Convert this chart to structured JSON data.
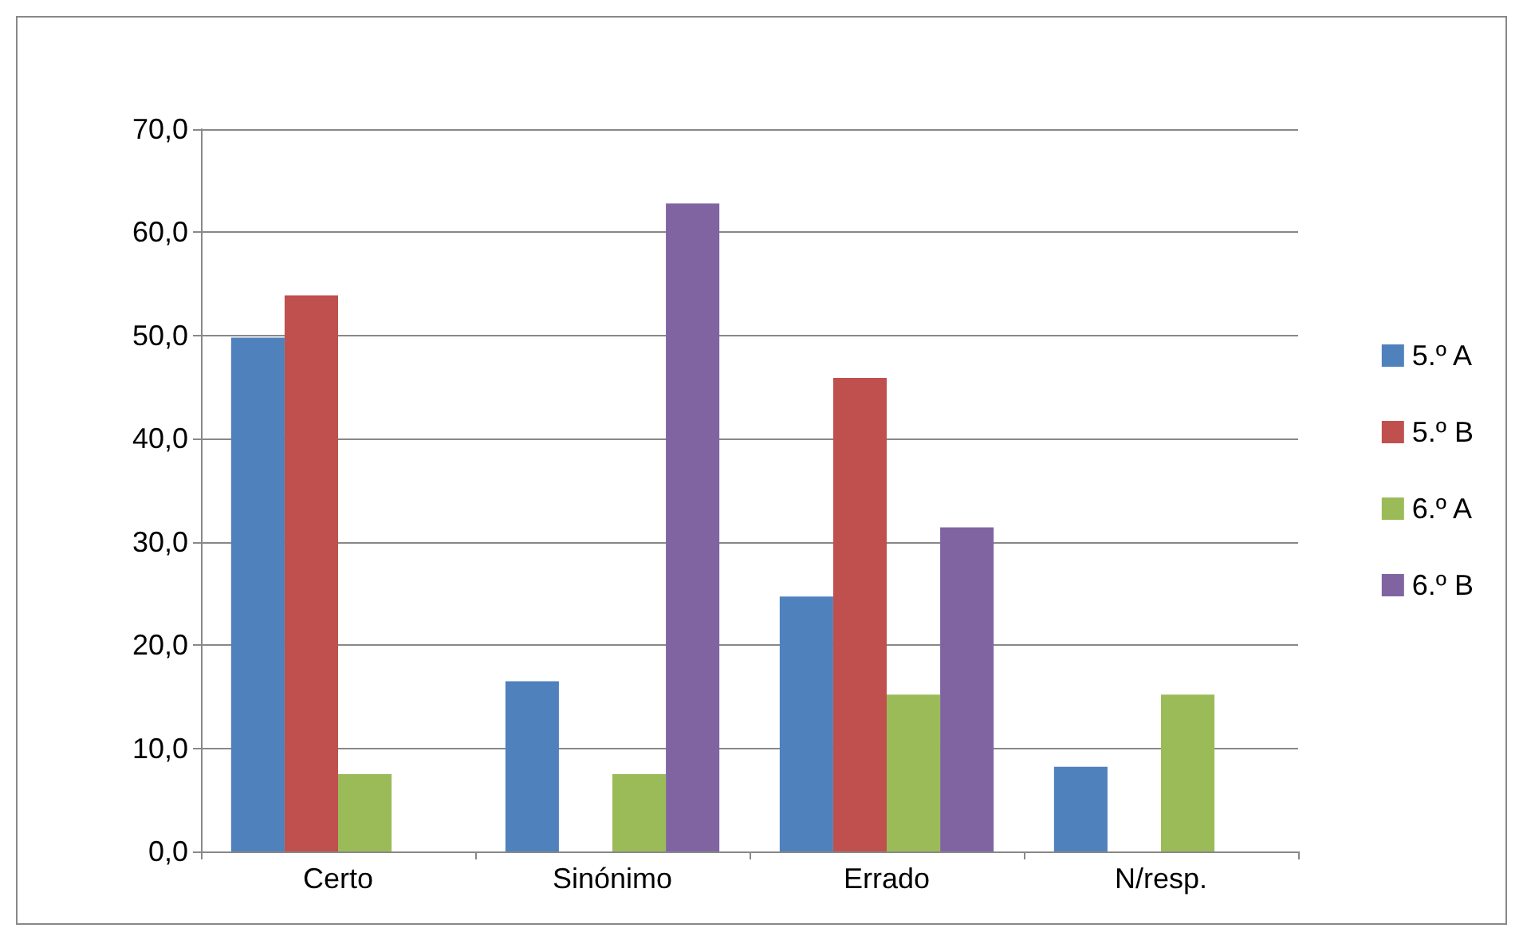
{
  "chart_data": {
    "type": "bar",
    "categories": [
      "Certo",
      "Sinónimo",
      "Errado",
      "N/resp."
    ],
    "series": [
      {
        "name": "5.º A",
        "color": "#4f81bd",
        "values": [
          49.8,
          16.5,
          24.7,
          8.2
        ]
      },
      {
        "name": "5.º B",
        "color": "#c0504d",
        "values": [
          53.9,
          0,
          45.9,
          0
        ]
      },
      {
        "name": "6.º A",
        "color": "#9bbb59",
        "values": [
          7.5,
          7.5,
          15.2,
          15.2
        ]
      },
      {
        "name": "6.º B",
        "color": "#8064a2",
        "values": [
          0,
          62.8,
          31.4,
          0
        ]
      }
    ],
    "ylim": [
      0,
      70
    ],
    "yticks": [
      {
        "value": 0,
        "label": "0,0"
      },
      {
        "value": 10,
        "label": "10,0"
      },
      {
        "value": 20,
        "label": "20,0"
      },
      {
        "value": 30,
        "label": "30,0"
      },
      {
        "value": 40,
        "label": "40,0"
      },
      {
        "value": 50,
        "label": "50,0"
      },
      {
        "value": 60,
        "label": "60,0"
      },
      {
        "value": 70,
        "label": "70,0"
      }
    ],
    "grid": "y",
    "legend": "right"
  }
}
